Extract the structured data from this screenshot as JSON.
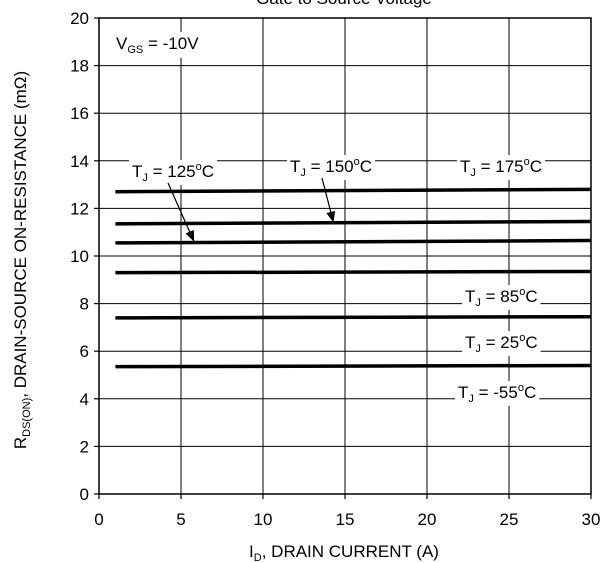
{
  "chart_data": {
    "type": "line",
    "title_fragment": "Gate to Source Voltage",
    "xlabel": {
      "main": "I",
      "sub": "D",
      "rest": ", DRAIN CURRENT (A)"
    },
    "ylabel": {
      "main": "R",
      "sub": "DS(ON)",
      "rest": ",  DRAIN-SOURCE ON-RESISTANCE (mΩ)"
    },
    "xlim": [
      0,
      30
    ],
    "ylim": [
      0,
      20
    ],
    "xticks": [
      0,
      5,
      10,
      15,
      20,
      25,
      30
    ],
    "yticks": [
      0,
      2,
      4,
      6,
      8,
      10,
      12,
      14,
      16,
      18,
      20
    ],
    "grid": true,
    "condition": {
      "main": "V",
      "sub": "GS",
      "rest": " = -10V"
    },
    "series": [
      {
        "name": "T_J = 175°C",
        "values": [
          [
            1,
            12.7
          ],
          [
            30,
            12.8
          ]
        ]
      },
      {
        "name": "T_J = 150°C",
        "values": [
          [
            1,
            11.35
          ],
          [
            30,
            11.45
          ]
        ]
      },
      {
        "name": "T_J = 125°C",
        "values": [
          [
            1,
            10.55
          ],
          [
            30,
            10.65
          ]
        ]
      },
      {
        "name": "T_J = 85°C",
        "values": [
          [
            1,
            9.3
          ],
          [
            30,
            9.35
          ]
        ]
      },
      {
        "name": "T_J = 25°C",
        "values": [
          [
            1,
            7.4
          ],
          [
            30,
            7.45
          ]
        ]
      },
      {
        "name": "T_J = -55°C",
        "values": [
          [
            1,
            5.35
          ],
          [
            30,
            5.4
          ]
        ]
      }
    ],
    "annotations": [
      {
        "id": "tj125",
        "base": "T",
        "sub": "J",
        "mid": " = 125",
        "sup": "o",
        "end": "C",
        "arrow_to": [
          5.8,
          10.6
        ]
      },
      {
        "id": "tj150",
        "base": "T",
        "sub": "J",
        "mid": " = 150",
        "sup": "o",
        "end": "C",
        "arrow_to": [
          14.3,
          11.4
        ]
      },
      {
        "id": "tj175",
        "base": "T",
        "sub": "J",
        "mid": " = 175",
        "sup": "o",
        "end": "C"
      },
      {
        "id": "tj85",
        "base": "T",
        "sub": "J",
        "mid": " = 85",
        "sup": "o",
        "end": "C"
      },
      {
        "id": "tj25",
        "base": "T",
        "sub": "J",
        "mid": " = 25",
        "sup": "o",
        "end": "C"
      },
      {
        "id": "tjm55",
        "base": "T",
        "sub": "J",
        "mid": " = -55",
        "sup": "o",
        "end": "C"
      }
    ]
  }
}
